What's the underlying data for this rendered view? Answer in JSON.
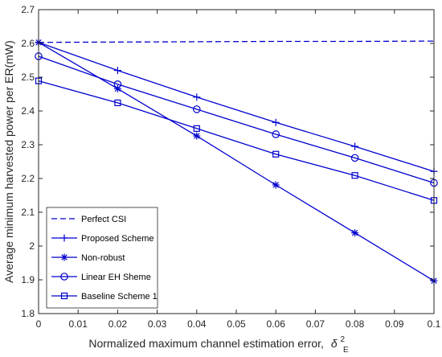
{
  "chart_data": {
    "type": "line",
    "xlabel": "Normalized maximum channel estimation error,",
    "xlabel_symbol": "δ",
    "xlabel_subscript": "E",
    "xlabel_superscript": "2",
    "ylabel": "Average minimum harvested power per ER(mW)",
    "xlim": [
      0,
      0.1
    ],
    "ylim": [
      1.8,
      2.7
    ],
    "x_ticks": [
      "0",
      "0.01",
      "0.02",
      "0.03",
      "0.04",
      "0.05",
      "0.06",
      "0.07",
      "0.08",
      "0.09",
      "0.1"
    ],
    "y_ticks": [
      "1.8",
      "1.9",
      "2",
      "2.1",
      "2.2",
      "2.3",
      "2.4",
      "2.5",
      "2.6",
      "2.7"
    ],
    "grid": false,
    "legend_position": "bottom-left",
    "line_color": "#0000cd",
    "series": [
      {
        "name": "Perfect CSI",
        "marker": "none",
        "dashed": true,
        "x": [
          0,
          0.02,
          0.04,
          0.06,
          0.08,
          0.1
        ],
        "values": [
          2.603,
          2.604,
          2.605,
          2.606,
          2.606,
          2.607
        ]
      },
      {
        "name": "Proposed Scheme",
        "marker": "plus",
        "dashed": false,
        "x": [
          0,
          0.02,
          0.04,
          0.06,
          0.08,
          0.1
        ],
        "values": [
          2.603,
          2.52,
          2.441,
          2.366,
          2.295,
          2.221
        ]
      },
      {
        "name": "Non-robust",
        "marker": "star",
        "dashed": false,
        "x": [
          0,
          0.02,
          0.04,
          0.06,
          0.08,
          0.1
        ],
        "values": [
          2.603,
          2.466,
          2.326,
          2.181,
          2.039,
          1.897
        ]
      },
      {
        "name": "Linear EH Sheme",
        "marker": "circle",
        "dashed": false,
        "x": [
          0,
          0.02,
          0.04,
          0.06,
          0.08,
          0.1
        ],
        "values": [
          2.562,
          2.479,
          2.405,
          2.331,
          2.261,
          2.187
        ]
      },
      {
        "name": "Baseline Scheme 1",
        "marker": "square",
        "dashed": false,
        "x": [
          0,
          0.02,
          0.04,
          0.06,
          0.08,
          0.1
        ],
        "values": [
          2.489,
          2.424,
          2.348,
          2.272,
          2.209,
          2.135
        ]
      }
    ]
  }
}
